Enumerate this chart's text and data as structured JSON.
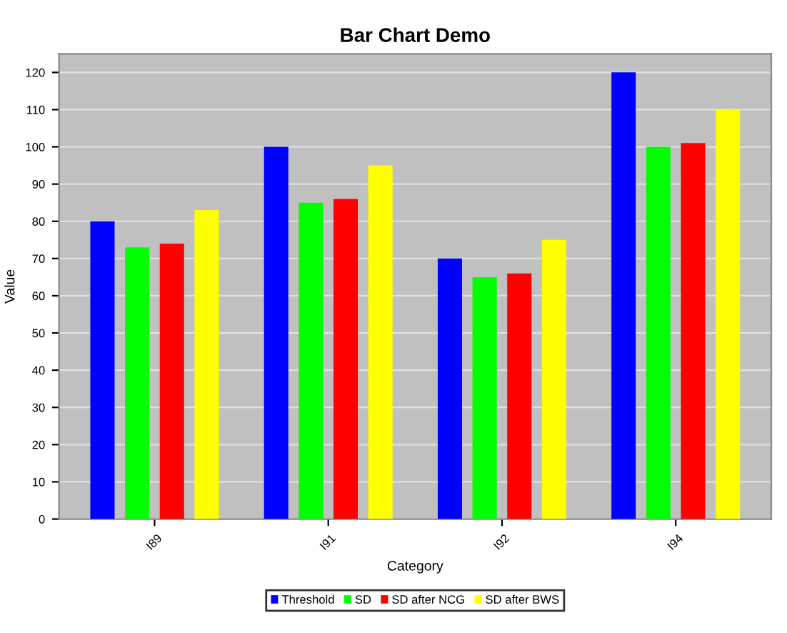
{
  "chart_data": {
    "type": "bar",
    "title": "Bar Chart Demo",
    "xlabel": "Category",
    "ylabel": "Value",
    "categories": [
      "I89",
      "I91",
      "I92",
      "I94"
    ],
    "series": [
      {
        "name": "Threshold",
        "color": "#0000ff",
        "values": [
          80,
          100,
          70,
          120
        ]
      },
      {
        "name": "SD",
        "color": "#00ff00",
        "values": [
          73,
          85,
          65,
          100
        ]
      },
      {
        "name": "SD after NCG",
        "color": "#ff0000",
        "values": [
          74,
          86,
          66,
          101
        ]
      },
      {
        "name": "SD after BWS",
        "color": "#ffff00",
        "values": [
          83,
          95,
          75,
          110
        ]
      }
    ],
    "ylim": [
      0,
      125
    ],
    "yticks": [
      0,
      10,
      20,
      30,
      40,
      50,
      60,
      70,
      80,
      90,
      100,
      110,
      120
    ],
    "grid": "y",
    "legend": "bottom"
  }
}
